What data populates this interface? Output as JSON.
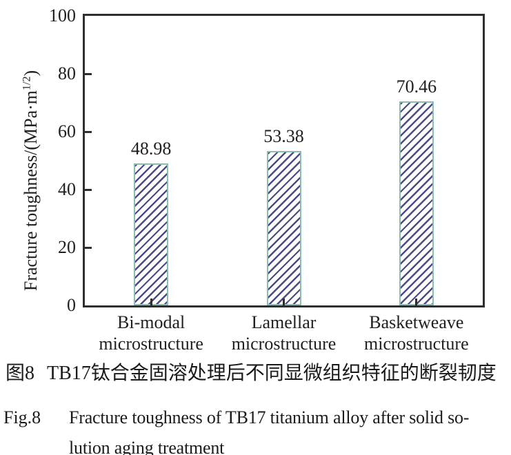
{
  "chart_data": {
    "type": "bar",
    "categories": [
      "Bi-modal\nmicrostructure",
      "Lamellar\nmicrostructure",
      "Basketweave\nmicrostructure"
    ],
    "values": [
      48.98,
      53.38,
      70.46
    ],
    "value_labels": [
      "48.98",
      "53.38",
      "70.46"
    ],
    "title": "",
    "xlabel": "",
    "ylabel": "Fracture toughness/(MPa·m^1/2)",
    "ylabel_parts": {
      "prefix": "Fracture toughness/(MPa·m",
      "sup": "1/2",
      "suffix": ")"
    },
    "ylim": [
      0,
      100
    ],
    "yticks": [
      0,
      20,
      40,
      60,
      80,
      100
    ],
    "grid": false,
    "legend": null,
    "hatch_style": "forward-diagonal",
    "colors": {
      "bar_face": "#ffffff",
      "bar_edge": "#8cbeb0",
      "hatch": "#4a4a87",
      "axis": "#2e2e2e",
      "text": "#1f1f1f"
    }
  },
  "caption": {
    "zh_label": "图8",
    "zh_text": "TB17钛合金固溶处理后不同显微组织特征的断裂韧度",
    "en_label": "Fig.8",
    "en_line1": "Fracture toughness of TB17 titanium alloy after solid so-",
    "en_line2": "lution aging treatment"
  }
}
